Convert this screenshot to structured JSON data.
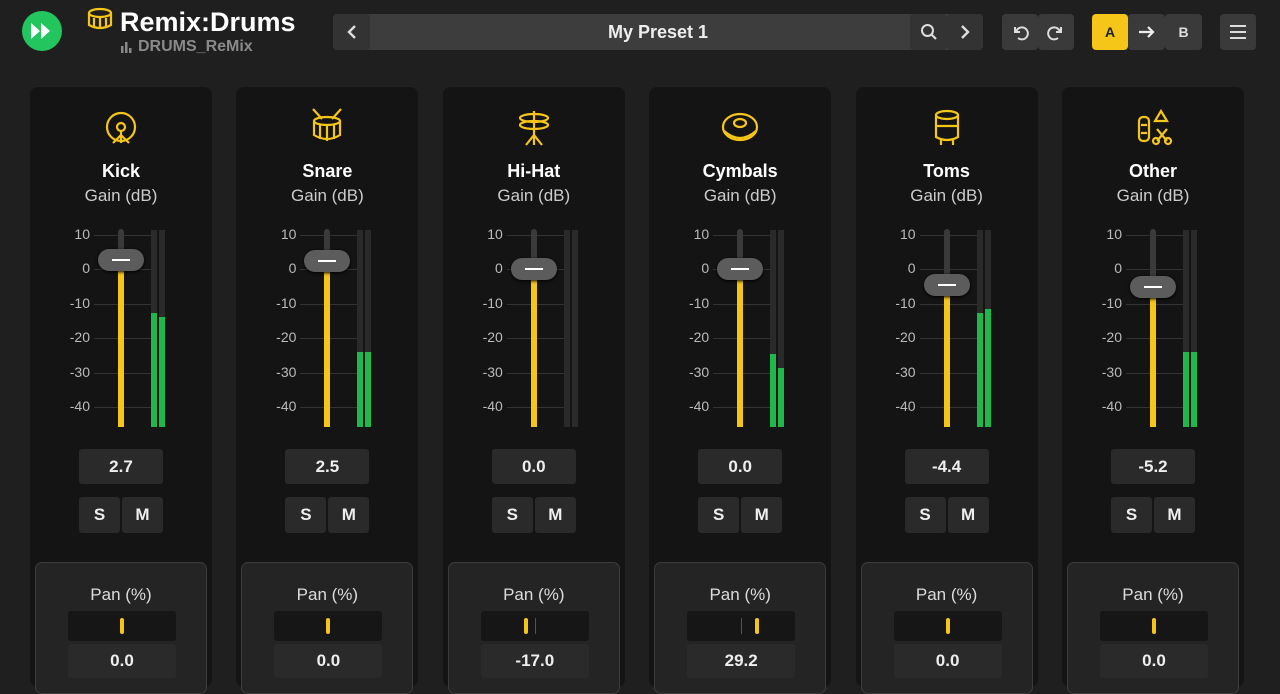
{
  "header": {
    "title": "Remix:Drums",
    "subtitle": "DRUMS_ReMix",
    "preset": "My Preset 1",
    "compare": {
      "a": "A",
      "b": "B"
    }
  },
  "meter_scale": [
    "10",
    "0",
    "-10",
    "-20",
    "-30",
    "-40"
  ],
  "channels": [
    {
      "name": "Kick",
      "gain_label": "Gain (dB)",
      "gain": "2.7",
      "solo": "S",
      "mute": "M",
      "pan_label": "Pan (%)",
      "pan": "0.0"
    },
    {
      "name": "Snare",
      "gain_label": "Gain (dB)",
      "gain": "2.5",
      "solo": "S",
      "mute": "M",
      "pan_label": "Pan (%)",
      "pan": "0.0"
    },
    {
      "name": "Hi-Hat",
      "gain_label": "Gain (dB)",
      "gain": "0.0",
      "solo": "S",
      "mute": "M",
      "pan_label": "Pan (%)",
      "pan": "-17.0"
    },
    {
      "name": "Cymbals",
      "gain_label": "Gain (dB)",
      "gain": "0.0",
      "solo": "S",
      "mute": "M",
      "pan_label": "Pan (%)",
      "pan": "29.2"
    },
    {
      "name": "Toms",
      "gain_label": "Gain (dB)",
      "gain": "-4.4",
      "solo": "S",
      "mute": "M",
      "pan_label": "Pan (%)",
      "pan": "0.0"
    },
    {
      "name": "Other",
      "gain_label": "Gain (dB)",
      "gain": "-5.2",
      "solo": "S",
      "mute": "M",
      "pan_label": "Pan (%)",
      "pan": "0.0"
    }
  ]
}
